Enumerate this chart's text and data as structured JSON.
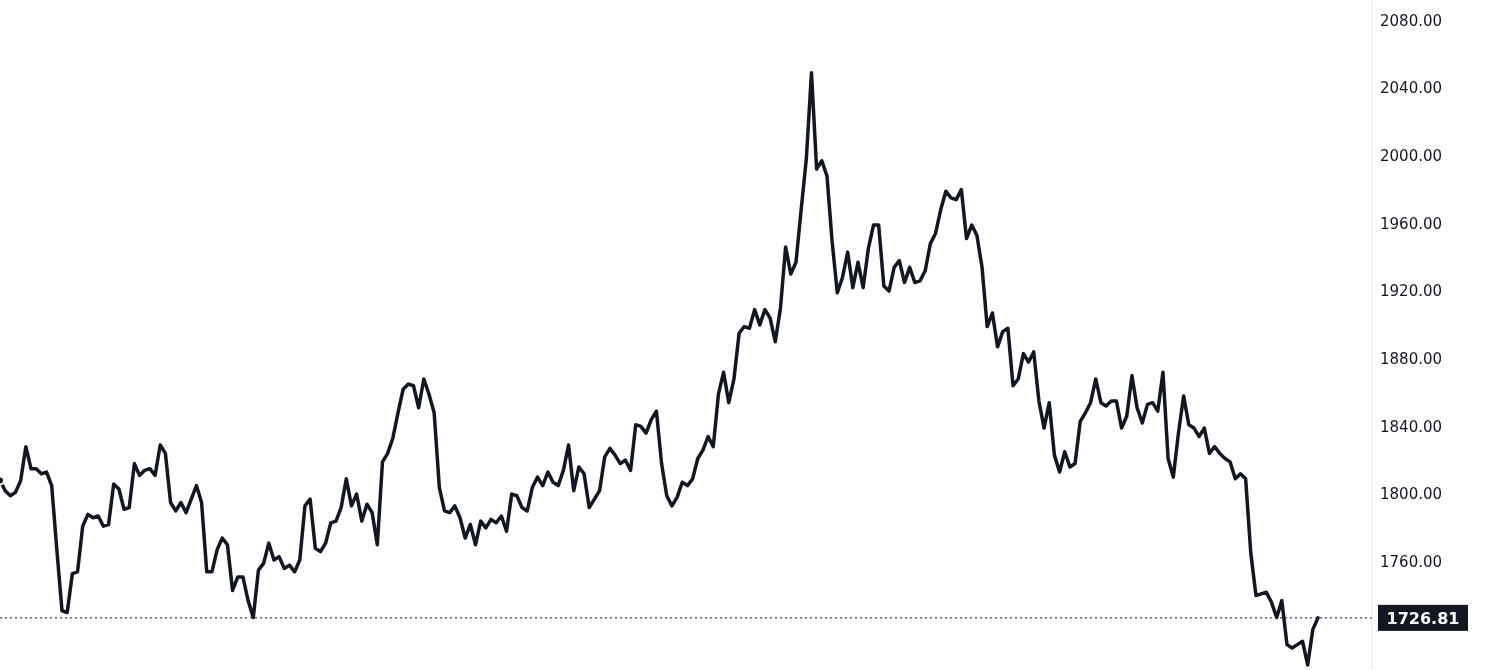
{
  "chart_data": {
    "type": "line",
    "color": "#131722",
    "categories": [
      null,
      null,
      null,
      null,
      null,
      null,
      null,
      null,
      null,
      null,
      null,
      null,
      null,
      null,
      null,
      null,
      null,
      null,
      null,
      null,
      null,
      null,
      null,
      null,
      null,
      null,
      null,
      null,
      null,
      null,
      null,
      null,
      null,
      null,
      null,
      null,
      null,
      null,
      null,
      null,
      null,
      null,
      null,
      null,
      null,
      null,
      null,
      null,
      null,
      null,
      null,
      null,
      null,
      null,
      null,
      null,
      null,
      null,
      null,
      null,
      null,
      null,
      null,
      null,
      null,
      null,
      null,
      null,
      null,
      null,
      null,
      null,
      null,
      null,
      null,
      null,
      null,
      null,
      null,
      null,
      null,
      null,
      null,
      null,
      null,
      null,
      null,
      null,
      null,
      null,
      null,
      null,
      null,
      null,
      null,
      null,
      null,
      null,
      null,
      null,
      null,
      null,
      null,
      null,
      null,
      null,
      null,
      null,
      null,
      null,
      null,
      null,
      null,
      null,
      null,
      null,
      null,
      null,
      null,
      null,
      null,
      null,
      null,
      null,
      null,
      null,
      null,
      null,
      null,
      null,
      null,
      null,
      null,
      null,
      null,
      null,
      null,
      null,
      null,
      null,
      null,
      null,
      null,
      null,
      null,
      null,
      null,
      null,
      null,
      null,
      null,
      null,
      null,
      null,
      null,
      null,
      null,
      null,
      null,
      null,
      null,
      null,
      null,
      null,
      null,
      null,
      null,
      null,
      null,
      null,
      null,
      null,
      null,
      null,
      null,
      null,
      null,
      null,
      null,
      null,
      null,
      null,
      null,
      null,
      null,
      null,
      null,
      null,
      null,
      null,
      null,
      null,
      null,
      null,
      null,
      null,
      null,
      null,
      null,
      null,
      null,
      null,
      null,
      null,
      null,
      null,
      null,
      null,
      null,
      null,
      null,
      null,
      null,
      null,
      null,
      null,
      null,
      null,
      null,
      null,
      null,
      null,
      null,
      null,
      null,
      null,
      null,
      null,
      null,
      null,
      null,
      null,
      null,
      null,
      null,
      null,
      null,
      null,
      null,
      null,
      null,
      null,
      null,
      null,
      null,
      null,
      null,
      null,
      null,
      null,
      null,
      null,
      null,
      null,
      null,
      null
    ],
    "values": [
      1808,
      1802,
      1799,
      1801,
      1808,
      1828,
      1815,
      1815,
      1812,
      1813,
      1805,
      1767,
      1731,
      1730,
      1753,
      1754,
      1781,
      1788,
      1786,
      1787,
      1781,
      1782,
      1806,
      1803,
      1791,
      1792,
      1818,
      1811,
      1814,
      1815,
      1811,
      1829,
      1824,
      1795,
      1790,
      1795,
      1789,
      1797,
      1805,
      1795,
      1754,
      1754,
      1767,
      1774,
      1770,
      1743,
      1751,
      1751,
      1737,
      1727,
      1755,
      1759,
      1771,
      1761,
      1763,
      1756,
      1758,
      1754,
      1761,
      1793,
      1797,
      1768,
      1766,
      1771,
      1783,
      1784,
      1792,
      1809,
      1793,
      1800,
      1784,
      1794,
      1789,
      1770,
      1819,
      1824,
      1833,
      1848,
      1862,
      1865,
      1864,
      1851,
      1868,
      1859,
      1848,
      1804,
      1790,
      1789,
      1793,
      1786,
      1774,
      1782,
      1770,
      1784,
      1780,
      1785,
      1783,
      1787,
      1778,
      1800,
      1799,
      1792,
      1790,
      1804,
      1810,
      1805,
      1813,
      1807,
      1805,
      1814,
      1829,
      1802,
      1816,
      1812,
      1792,
      1797,
      1802,
      1822,
      1827,
      1823,
      1818,
      1820,
      1814,
      1841,
      1840,
      1836,
      1844,
      1849,
      1818,
      1799,
      1793,
      1798,
      1807,
      1805,
      1809,
      1821,
      1826,
      1834,
      1828,
      1859,
      1872,
      1854,
      1868,
      1895,
      1899,
      1898,
      1909,
      1900,
      1909,
      1904,
      1890,
      1910,
      1946,
      1930,
      1937,
      1968,
      1998,
      2049,
      1992,
      1997,
      1988,
      1949,
      1919,
      1928,
      1943,
      1922,
      1937,
      1922,
      1945,
      1959,
      1959,
      1923,
      1920,
      1934,
      1938,
      1925,
      1934,
      1925,
      1926,
      1932,
      1948,
      1954,
      1968,
      1979,
      1975,
      1974,
      1980,
      1951,
      1959,
      1953,
      1934,
      1899,
      1907,
      1887,
      1896,
      1898,
      1864,
      1868,
      1883,
      1878,
      1884,
      1855,
      1839,
      1854,
      1823,
      1813,
      1825,
      1816,
      1818,
      1843,
      1848,
      1854,
      1868,
      1854,
      1852,
      1855,
      1855,
      1839,
      1846,
      1870,
      1851,
      1842,
      1853,
      1854,
      1849,
      1872,
      1821,
      1810,
      1836,
      1858,
      1841,
      1839,
      1834,
      1839,
      1824,
      1828,
      1824,
      1821,
      1819,
      1809,
      1812,
      1809,
      1765,
      1740,
      1741,
      1742,
      1736,
      1727,
      1737,
      1711,
      1709,
      1711,
      1713,
      1699,
      1720,
      1726.81
    ],
    "ylim": [
      1696,
      2092
    ],
    "yticks": [
      {
        "value": 1760,
        "label": "1760.00"
      },
      {
        "value": 1800,
        "label": "1800.00"
      },
      {
        "value": 1840,
        "label": "1840.00"
      },
      {
        "value": 1880,
        "label": "1880.00"
      },
      {
        "value": 1920,
        "label": "1920.00"
      },
      {
        "value": 1960,
        "label": "1960.00"
      },
      {
        "value": 2000,
        "label": "2000.00"
      },
      {
        "value": 2040,
        "label": "2040.00"
      },
      {
        "value": 2080,
        "label": "2080.00"
      }
    ],
    "tick_labels": "y",
    "ref_lines": [
      {
        "axis": "y",
        "value": 1726.81,
        "label": "1726.81",
        "color": "#131722",
        "line_style": "dotted"
      }
    ]
  }
}
